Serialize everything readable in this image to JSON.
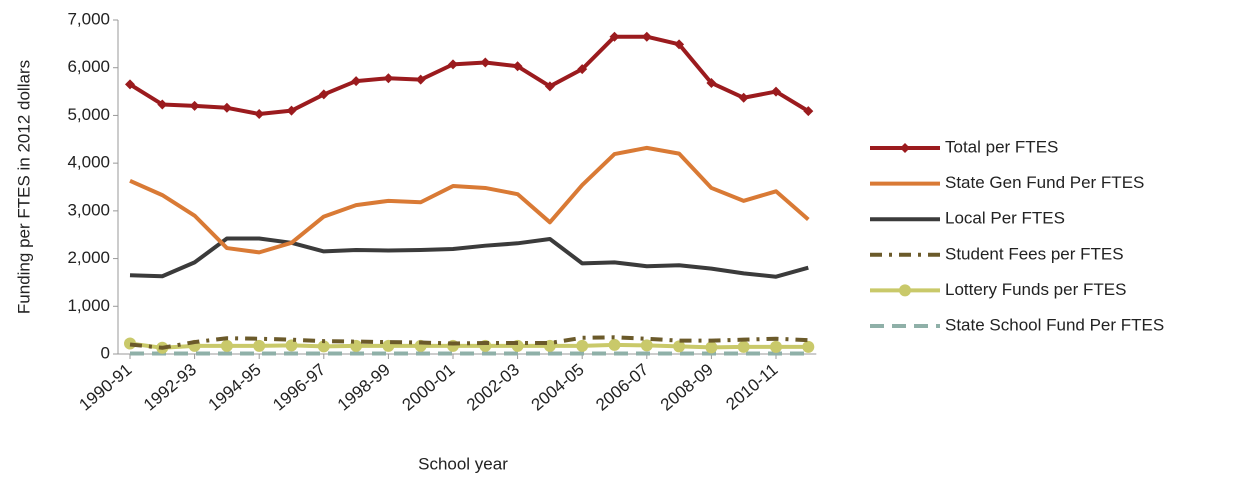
{
  "chart_data": {
    "type": "line",
    "x_label": "School year",
    "y_label": "Funding per FTES in 2012 dollars",
    "categories": [
      "1990-91",
      null,
      "1992-93",
      null,
      "1994-95",
      null,
      "1996-97",
      null,
      "1998-99",
      null,
      "2000-01",
      null,
      "2002-03",
      null,
      "2004-05",
      null,
      "2006-07",
      null,
      "2008-09",
      null,
      "2010-11",
      null
    ],
    "ylim": [
      0,
      7000
    ],
    "yticks": [
      0,
      {
        "value": 1000,
        "label": "1,000"
      },
      {
        "value": 2000,
        "label": "2,000"
      },
      {
        "value": 3000,
        "label": "3,000"
      },
      {
        "value": 4000,
        "label": "4,000"
      },
      {
        "value": 5000,
        "label": "5,000"
      },
      {
        "value": 6000,
        "label": "6,000"
      },
      {
        "value": 7000,
        "label": "7,000"
      }
    ],
    "legend_position": "right",
    "series": [
      {
        "name": "Total per FTES",
        "color": "#9b1b1e",
        "style": "solid",
        "marker": "diamond",
        "values": [
          5650,
          5230,
          5200,
          5160,
          5030,
          5100,
          5440,
          5720,
          5780,
          5750,
          6070,
          6110,
          6030,
          5610,
          5970,
          6650,
          6650,
          6490,
          5680,
          5370,
          5500,
          5090
        ]
      },
      {
        "name": "State Gen Fund Per FTES",
        "color": "#d97a35",
        "style": "solid",
        "marker": "none",
        "values": [
          3630,
          3330,
          2900,
          2220,
          2130,
          2330,
          2880,
          3120,
          3210,
          3180,
          3520,
          3480,
          3350,
          2760,
          3540,
          4190,
          4320,
          4200,
          3480,
          3210,
          3410,
          2820
        ]
      },
      {
        "name": "Local Per FTES",
        "color": "#3b3b3b",
        "style": "solid",
        "marker": "none",
        "values": [
          1650,
          1630,
          1920,
          2420,
          2420,
          2330,
          2150,
          2180,
          2170,
          2180,
          2200,
          2270,
          2320,
          2410,
          1900,
          1920,
          1840,
          1860,
          1790,
          1690,
          1620,
          1810
        ]
      },
      {
        "name": "Student Fees per FTES",
        "color": "#6b5a2a",
        "style": "dashdot",
        "marker": "none",
        "values": [
          200,
          130,
          250,
          330,
          320,
          300,
          270,
          260,
          250,
          240,
          220,
          230,
          230,
          230,
          340,
          350,
          320,
          280,
          280,
          300,
          320,
          290
        ]
      },
      {
        "name": "Lottery Funds per FTES",
        "color": "#c9c96a",
        "style": "solid",
        "marker": "circle",
        "values": [
          220,
          130,
          170,
          170,
          170,
          180,
          160,
          170,
          170,
          170,
          170,
          170,
          170,
          170,
          170,
          190,
          180,
          160,
          140,
          150,
          150,
          150
        ]
      },
      {
        "name": "State School Fund Per FTES",
        "color": "#8fb0a8",
        "style": "dashed",
        "marker": "none",
        "values": [
          10,
          10,
          10,
          10,
          10,
          10,
          10,
          10,
          10,
          10,
          10,
          10,
          10,
          10,
          10,
          10,
          10,
          10,
          10,
          10,
          10,
          10
        ]
      }
    ]
  }
}
